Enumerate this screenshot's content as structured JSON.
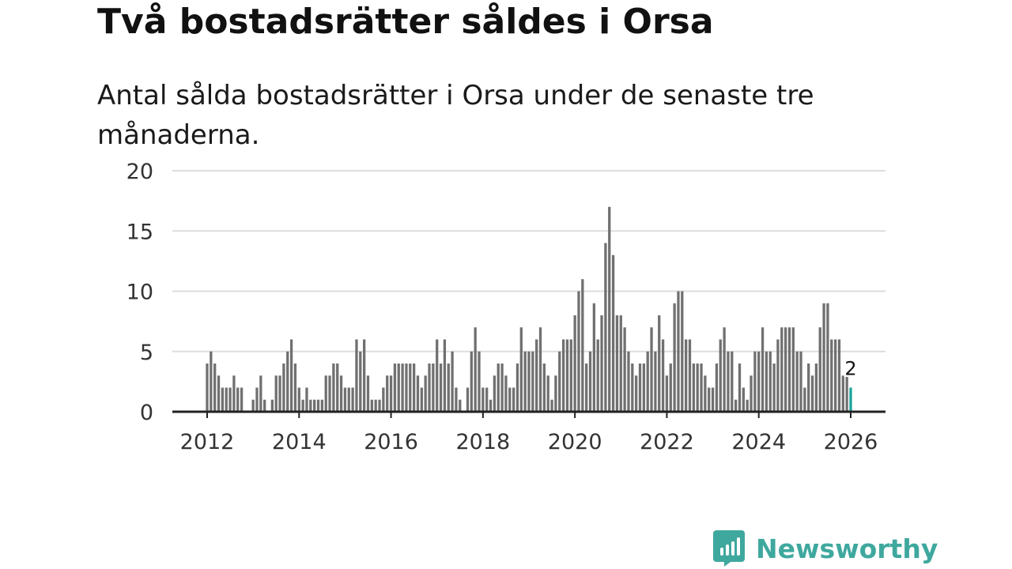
{
  "title": "Två bostadsrätter såldes i Orsa",
  "subtitle": "Antal sålda bostadsrätter i Orsa under de senaste tre månaderna.",
  "brand": {
    "name": "Newsworthy",
    "color": "#3fa89e",
    "icon": "newsworthy-logo-icon"
  },
  "colors": {
    "bar": "#707070",
    "highlight": "#1aa39a",
    "grid": "#dddddd",
    "axis": "#222222"
  },
  "chart_data": {
    "type": "bar",
    "title": "Två bostadsrätter såldes i Orsa",
    "subtitle": "Antal sålda bostadsrätter i Orsa under de senaste tre månaderna.",
    "xlabel": "",
    "ylabel": "",
    "ylim": [
      0,
      20
    ],
    "yticks": [
      "0",
      "5",
      "10",
      "15",
      "20"
    ],
    "xticks": [
      "2012",
      "2014",
      "2016",
      "2018",
      "2020",
      "2022",
      "2024",
      "2026"
    ],
    "x_start": {
      "year": 2012,
      "month": 1
    },
    "frequency": "monthly",
    "highlight_label": "2",
    "values": [
      4,
      5,
      4,
      3,
      2,
      2,
      2,
      3,
      2,
      2,
      0,
      0,
      1,
      2,
      3,
      1,
      0,
      1,
      3,
      3,
      4,
      5,
      6,
      4,
      2,
      1,
      2,
      1,
      1,
      1,
      1,
      3,
      3,
      4,
      4,
      3,
      2,
      2,
      2,
      6,
      5,
      6,
      3,
      1,
      1,
      1,
      2,
      3,
      3,
      4,
      4,
      4,
      4,
      4,
      4,
      3,
      2,
      3,
      4,
      4,
      6,
      4,
      6,
      4,
      5,
      2,
      1,
      0,
      2,
      5,
      7,
      5,
      2,
      2,
      1,
      3,
      4,
      4,
      3,
      2,
      2,
      4,
      7,
      5,
      5,
      5,
      6,
      7,
      4,
      3,
      1,
      3,
      5,
      6,
      6,
      6,
      8,
      10,
      11,
      4,
      5,
      9,
      6,
      8,
      14,
      17,
      13,
      8,
      8,
      7,
      5,
      4,
      3,
      4,
      4,
      5,
      7,
      5,
      8,
      6,
      3,
      4,
      9,
      10,
      10,
      6,
      6,
      4,
      4,
      4,
      3,
      2,
      2,
      4,
      6,
      7,
      5,
      5,
      1,
      4,
      2,
      1,
      3,
      5,
      5,
      7,
      5,
      5,
      4,
      6,
      7,
      7,
      7,
      7,
      5,
      5,
      2,
      4,
      3,
      4,
      7,
      9,
      9,
      6,
      6,
      6,
      3,
      3,
      2
    ]
  }
}
